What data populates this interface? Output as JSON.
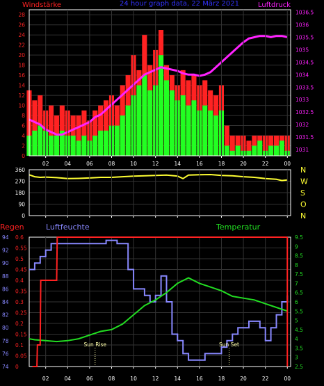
{
  "header": {
    "left": "Windstärke",
    "center": "24 hour graph data, 22 März 2021",
    "right": "Luftdruck"
  },
  "colors": {
    "background": "#000000",
    "frame": "#ffffff",
    "grid": "#333333",
    "wind_gust": "#ff2222",
    "wind_avg": "#22ff22",
    "pressure": "#ff22ff",
    "direction": "#ffff33",
    "rain": "#ff2222",
    "humidity": "#8888ff",
    "temperature": "#22dd22",
    "header_left": "#ff2222",
    "header_center": "#3333ff",
    "header_right": "#ff22ff",
    "compass": "#ffff33",
    "sun_label": "#ffffaa"
  },
  "x_axis": {
    "ticks": [
      "02",
      "04",
      "06",
      "08",
      "10",
      "12",
      "14",
      "16",
      "18",
      "20",
      "22",
      "00"
    ],
    "range": [
      0.5,
      24.3
    ]
  },
  "panel_wind": {
    "left_ticks": [
      "0",
      "2",
      "4",
      "6",
      "8",
      "10",
      "12",
      "14",
      "16",
      "18",
      "20",
      "22",
      "24",
      "26",
      "28"
    ],
    "right_ticks": [
      "1031",
      "1031.5",
      "1032",
      "1032.5",
      "1033",
      "1033.5",
      "1034",
      "1034.5",
      "1035",
      "1035.5",
      "1036",
      "1036.5"
    ]
  },
  "panel_direction": {
    "ticks": [
      "0",
      "90",
      "180",
      "270",
      "360"
    ],
    "compass_labels": [
      "N",
      "W",
      "S",
      "O",
      "N"
    ]
  },
  "panel_climate": {
    "label_rain": "Regen",
    "label_humidity": "Luftfeuchte",
    "label_temperature": "Temperatur",
    "rain_ticks": [
      "0",
      "0.05",
      "0.1",
      "0.15",
      "0.2",
      "0.25",
      "0.3",
      "0.35",
      "0.4",
      "0.45",
      "0.5",
      "0.55",
      "0.6"
    ],
    "humidity_ticks": [
      "74",
      "76",
      "78",
      "80",
      "82",
      "84",
      "86",
      "88",
      "90",
      "92",
      "94"
    ],
    "temperature_ticks": [
      "2.5",
      "3",
      "3.5",
      "4",
      "4.5",
      "5",
      "5.5",
      "6",
      "6.5",
      "7",
      "7.5",
      "8",
      "8.5",
      "9",
      "9.5"
    ],
    "sun_rise": "Sun Rise",
    "sun_set": "Sun Set"
  },
  "chart_data": [
    {
      "type": "line",
      "title": "",
      "xlabel": "",
      "ylabel": "Windstärke",
      "ylim": [
        0,
        29
      ],
      "y2label": "Luftdruck",
      "y2lim": [
        1030.75,
        1036.6
      ],
      "grid": true,
      "series": [
        {
          "name": "Windstärke",
          "role": "gust",
          "x": [
            0.5,
            1,
            1.5,
            2,
            2.5,
            3,
            3.5,
            4,
            4.5,
            5,
            5.5,
            6,
            6.5,
            7,
            7.5,
            8,
            8.5,
            9,
            9.5,
            10,
            10.5,
            11,
            11.5,
            12,
            12.5,
            13,
            13.5,
            14,
            14.5,
            15,
            15.5,
            16,
            16.5,
            17,
            17.5,
            18,
            18.5,
            19,
            19.5,
            20,
            20.5,
            21,
            21.5,
            22,
            22.5,
            23,
            23.5,
            24
          ],
          "values": [
            13,
            11,
            12,
            9,
            10,
            8,
            10,
            9,
            8,
            8,
            9,
            7,
            9,
            10,
            11,
            12,
            10,
            14,
            16,
            20,
            17,
            24,
            18,
            21,
            25,
            18,
            16,
            14,
            17,
            15,
            16,
            14,
            15,
            13,
            12,
            14,
            6,
            4,
            4,
            4,
            3,
            4,
            4,
            4,
            4,
            4,
            4,
            4
          ]
        },
        {
          "name": "Windstärke",
          "role": "average",
          "x": [
            0.5,
            1,
            1.5,
            2,
            2.5,
            3,
            3.5,
            4,
            4.5,
            5,
            5.5,
            6,
            6.5,
            7,
            7.5,
            8,
            8.5,
            9,
            9.5,
            10,
            10.5,
            11,
            11.5,
            12,
            12.5,
            13,
            13.5,
            14,
            14.5,
            15,
            15.5,
            16,
            16.5,
            17,
            17.5,
            18,
            18.5,
            19,
            19.5,
            20,
            20.5,
            21,
            21.5,
            22,
            22.5,
            23,
            23.5,
            24
          ],
          "values": [
            4,
            5,
            6,
            5,
            4,
            4,
            5,
            4,
            4,
            3,
            4,
            3,
            4,
            5,
            5,
            6,
            6,
            8,
            10,
            12,
            14,
            16,
            13,
            14,
            20,
            15,
            13,
            11,
            12,
            10,
            11,
            9,
            10,
            9,
            8,
            9,
            2,
            1,
            2,
            1,
            1,
            2,
            3,
            1,
            2,
            2,
            3,
            1
          ]
        },
        {
          "name": "Luftdruck",
          "axis": "right",
          "x": [
            0.5,
            1,
            1.5,
            2,
            2.5,
            3,
            3.5,
            4,
            4.5,
            5,
            5.5,
            6,
            6.5,
            7,
            7.5,
            8,
            8.5,
            9,
            9.5,
            10,
            10.5,
            11,
            11.5,
            12,
            12.5,
            13,
            13.5,
            14,
            14.5,
            15,
            15.5,
            16,
            16.5,
            17,
            17.5,
            18,
            18.5,
            19,
            19.5,
            20,
            20.5,
            21,
            21.5,
            22,
            22.5,
            23,
            23.5,
            24
          ],
          "values": [
            1032.2,
            1032.1,
            1032.0,
            1031.8,
            1031.7,
            1031.6,
            1031.6,
            1031.7,
            1031.8,
            1031.9,
            1032.0,
            1032.1,
            1032.3,
            1032.4,
            1032.6,
            1032.8,
            1033.0,
            1033.2,
            1033.4,
            1033.6,
            1033.8,
            1034.0,
            1034.1,
            1034.2,
            1034.3,
            1034.25,
            1034.2,
            1034.15,
            1034.05,
            1034.0,
            1034.0,
            1033.95,
            1034.0,
            1034.1,
            1034.3,
            1034.5,
            1034.7,
            1034.9,
            1035.1,
            1035.3,
            1035.45,
            1035.5,
            1035.55,
            1035.55,
            1035.5,
            1035.55,
            1035.55,
            1035.5
          ]
        }
      ]
    },
    {
      "type": "line",
      "title": "",
      "xlabel": "",
      "ylabel": "",
      "ylim": [
        0,
        360
      ],
      "grid": true,
      "series": [
        {
          "name": "",
          "x": [
            0.5,
            1,
            1.5,
            2,
            3,
            4,
            5,
            6,
            7,
            8,
            9,
            10,
            11,
            12,
            13,
            14,
            14.5,
            15,
            16,
            17,
            18,
            19,
            20,
            21,
            22,
            23,
            23.5,
            24
          ],
          "values": [
            320,
            305,
            300,
            302,
            298,
            290,
            292,
            295,
            300,
            300,
            305,
            310,
            312,
            315,
            318,
            310,
            290,
            318,
            320,
            322,
            315,
            312,
            305,
            300,
            290,
            285,
            275,
            280
          ]
        }
      ]
    },
    {
      "type": "line",
      "title": "",
      "xlabel": "",
      "ylabel": "Regen",
      "ylim": [
        0,
        0.6
      ],
      "y2label": "Luftfeuchte",
      "y2lim": [
        74,
        94
      ],
      "y3label": "Temperatur",
      "y3lim": [
        2.5,
        9.5
      ],
      "grid": true,
      "series": [
        {
          "name": "Regen",
          "axis": "rain",
          "x": [
            0.8,
            1.2,
            1.25,
            1.5,
            1.55,
            3.0,
            3.05,
            24.0
          ],
          "values": [
            0,
            0,
            0.1,
            0.1,
            0.4,
            0.4,
            0.6,
            0.6
          ]
        },
        {
          "name": "Luftfeuchte",
          "axis": "humidity",
          "x": [
            0.5,
            1,
            1.5,
            2,
            2.5,
            3,
            4,
            5,
            6,
            7,
            7.5,
            8,
            8.5,
            9,
            9.5,
            10,
            10.5,
            11,
            11.5,
            12,
            12.5,
            13,
            13.5,
            14,
            14.5,
            15,
            15.5,
            16,
            16.5,
            17,
            17.5,
            18,
            18.5,
            19,
            19.5,
            20,
            20.5,
            21,
            21.5,
            22,
            22.5,
            23,
            23.5,
            24
          ],
          "values": [
            89,
            90,
            91,
            92,
            93,
            93,
            93,
            93,
            93,
            93,
            93.5,
            93.5,
            93,
            93,
            89,
            86,
            86,
            85,
            84,
            85,
            88,
            84,
            79,
            78,
            76,
            75,
            75,
            75,
            76,
            76,
            76,
            77,
            78,
            79,
            80,
            80,
            81,
            81,
            80,
            78,
            80,
            82,
            84,
            85
          ]
        },
        {
          "name": "Temperatur",
          "axis": "temperature",
          "x": [
            0.5,
            1,
            2,
            3,
            4,
            5,
            6,
            7,
            8,
            9,
            10,
            11,
            12,
            13,
            14,
            15,
            16,
            17,
            18,
            19,
            20,
            21,
            22,
            23,
            24
          ],
          "values": [
            4.0,
            3.95,
            3.9,
            3.85,
            3.9,
            4.0,
            4.2,
            4.4,
            4.5,
            4.8,
            5.3,
            5.8,
            6.1,
            6.5,
            7.0,
            7.3,
            7.0,
            6.8,
            6.6,
            6.3,
            6.2,
            6.1,
            5.9,
            5.7,
            5.5
          ]
        }
      ]
    }
  ]
}
